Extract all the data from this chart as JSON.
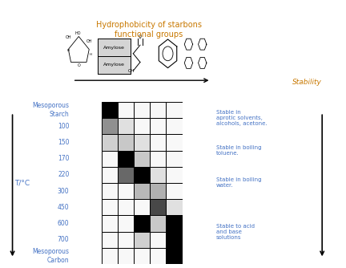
{
  "title_hydrophobicity": "Hydrophobicity of starbons\nfunctional groups",
  "title_color": "#c87800",
  "row_labels": [
    "Mesoporous\nStarch",
    "100",
    "150",
    "170",
    "220",
    "300",
    "450",
    "600",
    "700",
    "Mesoporous\nCarbon"
  ],
  "row_label_color": "#4472c4",
  "t_label": "T/°C",
  "stability_label": "Stability",
  "stability_label_color": "#c87800",
  "stability_annotations": [
    "Stable in\naprotic solvents,\nalcohols, acetone.",
    "Stable in boiling\ntoluene.",
    "Stable in boiling\nwater.",
    "Stable to acid\nand base\nsolutions"
  ],
  "stability_annotation_color": "#4472c4",
  "grid_colors": [
    [
      "#000000",
      "#f8f8f8",
      "#f8f8f8",
      "#f8f8f8",
      "#f8f8f8"
    ],
    [
      "#909090",
      "#e0e0e0",
      "#f8f8f8",
      "#f8f8f8",
      "#f8f8f8"
    ],
    [
      "#d0d0d0",
      "#c8c8c8",
      "#e0e0e0",
      "#f8f8f8",
      "#f8f8f8"
    ],
    [
      "#f8f8f8",
      "#000000",
      "#c8c8c8",
      "#f8f8f8",
      "#f8f8f8"
    ],
    [
      "#f8f8f8",
      "#686868",
      "#000000",
      "#e0e0e0",
      "#f8f8f8"
    ],
    [
      "#f8f8f8",
      "#f8f8f8",
      "#b8b8b8",
      "#b0b0b0",
      "#f8f8f8"
    ],
    [
      "#f8f8f8",
      "#f8f8f8",
      "#f8f8f8",
      "#484848",
      "#e0e0e0"
    ],
    [
      "#f8f8f8",
      "#f8f8f8",
      "#000000",
      "#c8c8c8",
      "#000000"
    ],
    [
      "#f8f8f8",
      "#f8f8f8",
      "#d0d0d0",
      "#f8f8f8",
      "#000000"
    ],
    [
      "#f8f8f8",
      "#f8f8f8",
      "#f8f8f8",
      "#f8f8f8",
      "#000000"
    ]
  ],
  "figsize": [
    4.32,
    3.34
  ],
  "dpi": 100
}
